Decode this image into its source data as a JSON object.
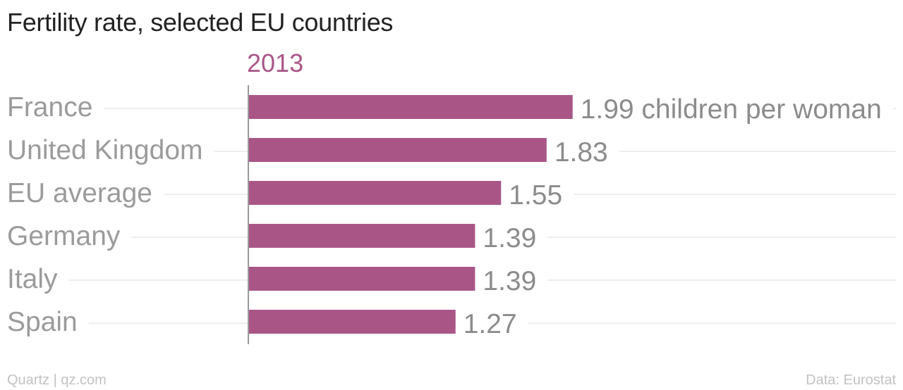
{
  "title": "Fertility rate, selected EU countries",
  "footer": {
    "source_left": "Quartz | qz.com",
    "source_right": "Data: Eurostat"
  },
  "colors": {
    "bar": "#a95687",
    "series_label": "#a95687",
    "axis": "#999999",
    "grid": "#eeeeee"
  },
  "chart_data": {
    "type": "bar",
    "orientation": "horizontal",
    "title": "Fertility rate, selected EU countries",
    "categories": [
      "France",
      "United Kingdom",
      "EU average",
      "Germany",
      "Italy",
      "Spain"
    ],
    "series": [
      {
        "name": "2013",
        "values": [
          1.99,
          1.83,
          1.55,
          1.39,
          1.39,
          1.27
        ]
      }
    ],
    "data_labels": [
      "1.99 children per woman",
      "1.83",
      "1.55",
      "1.39",
      "1.39",
      "1.27"
    ],
    "xlim": [
      0,
      2.0
    ],
    "grid": true,
    "legend": "top"
  }
}
